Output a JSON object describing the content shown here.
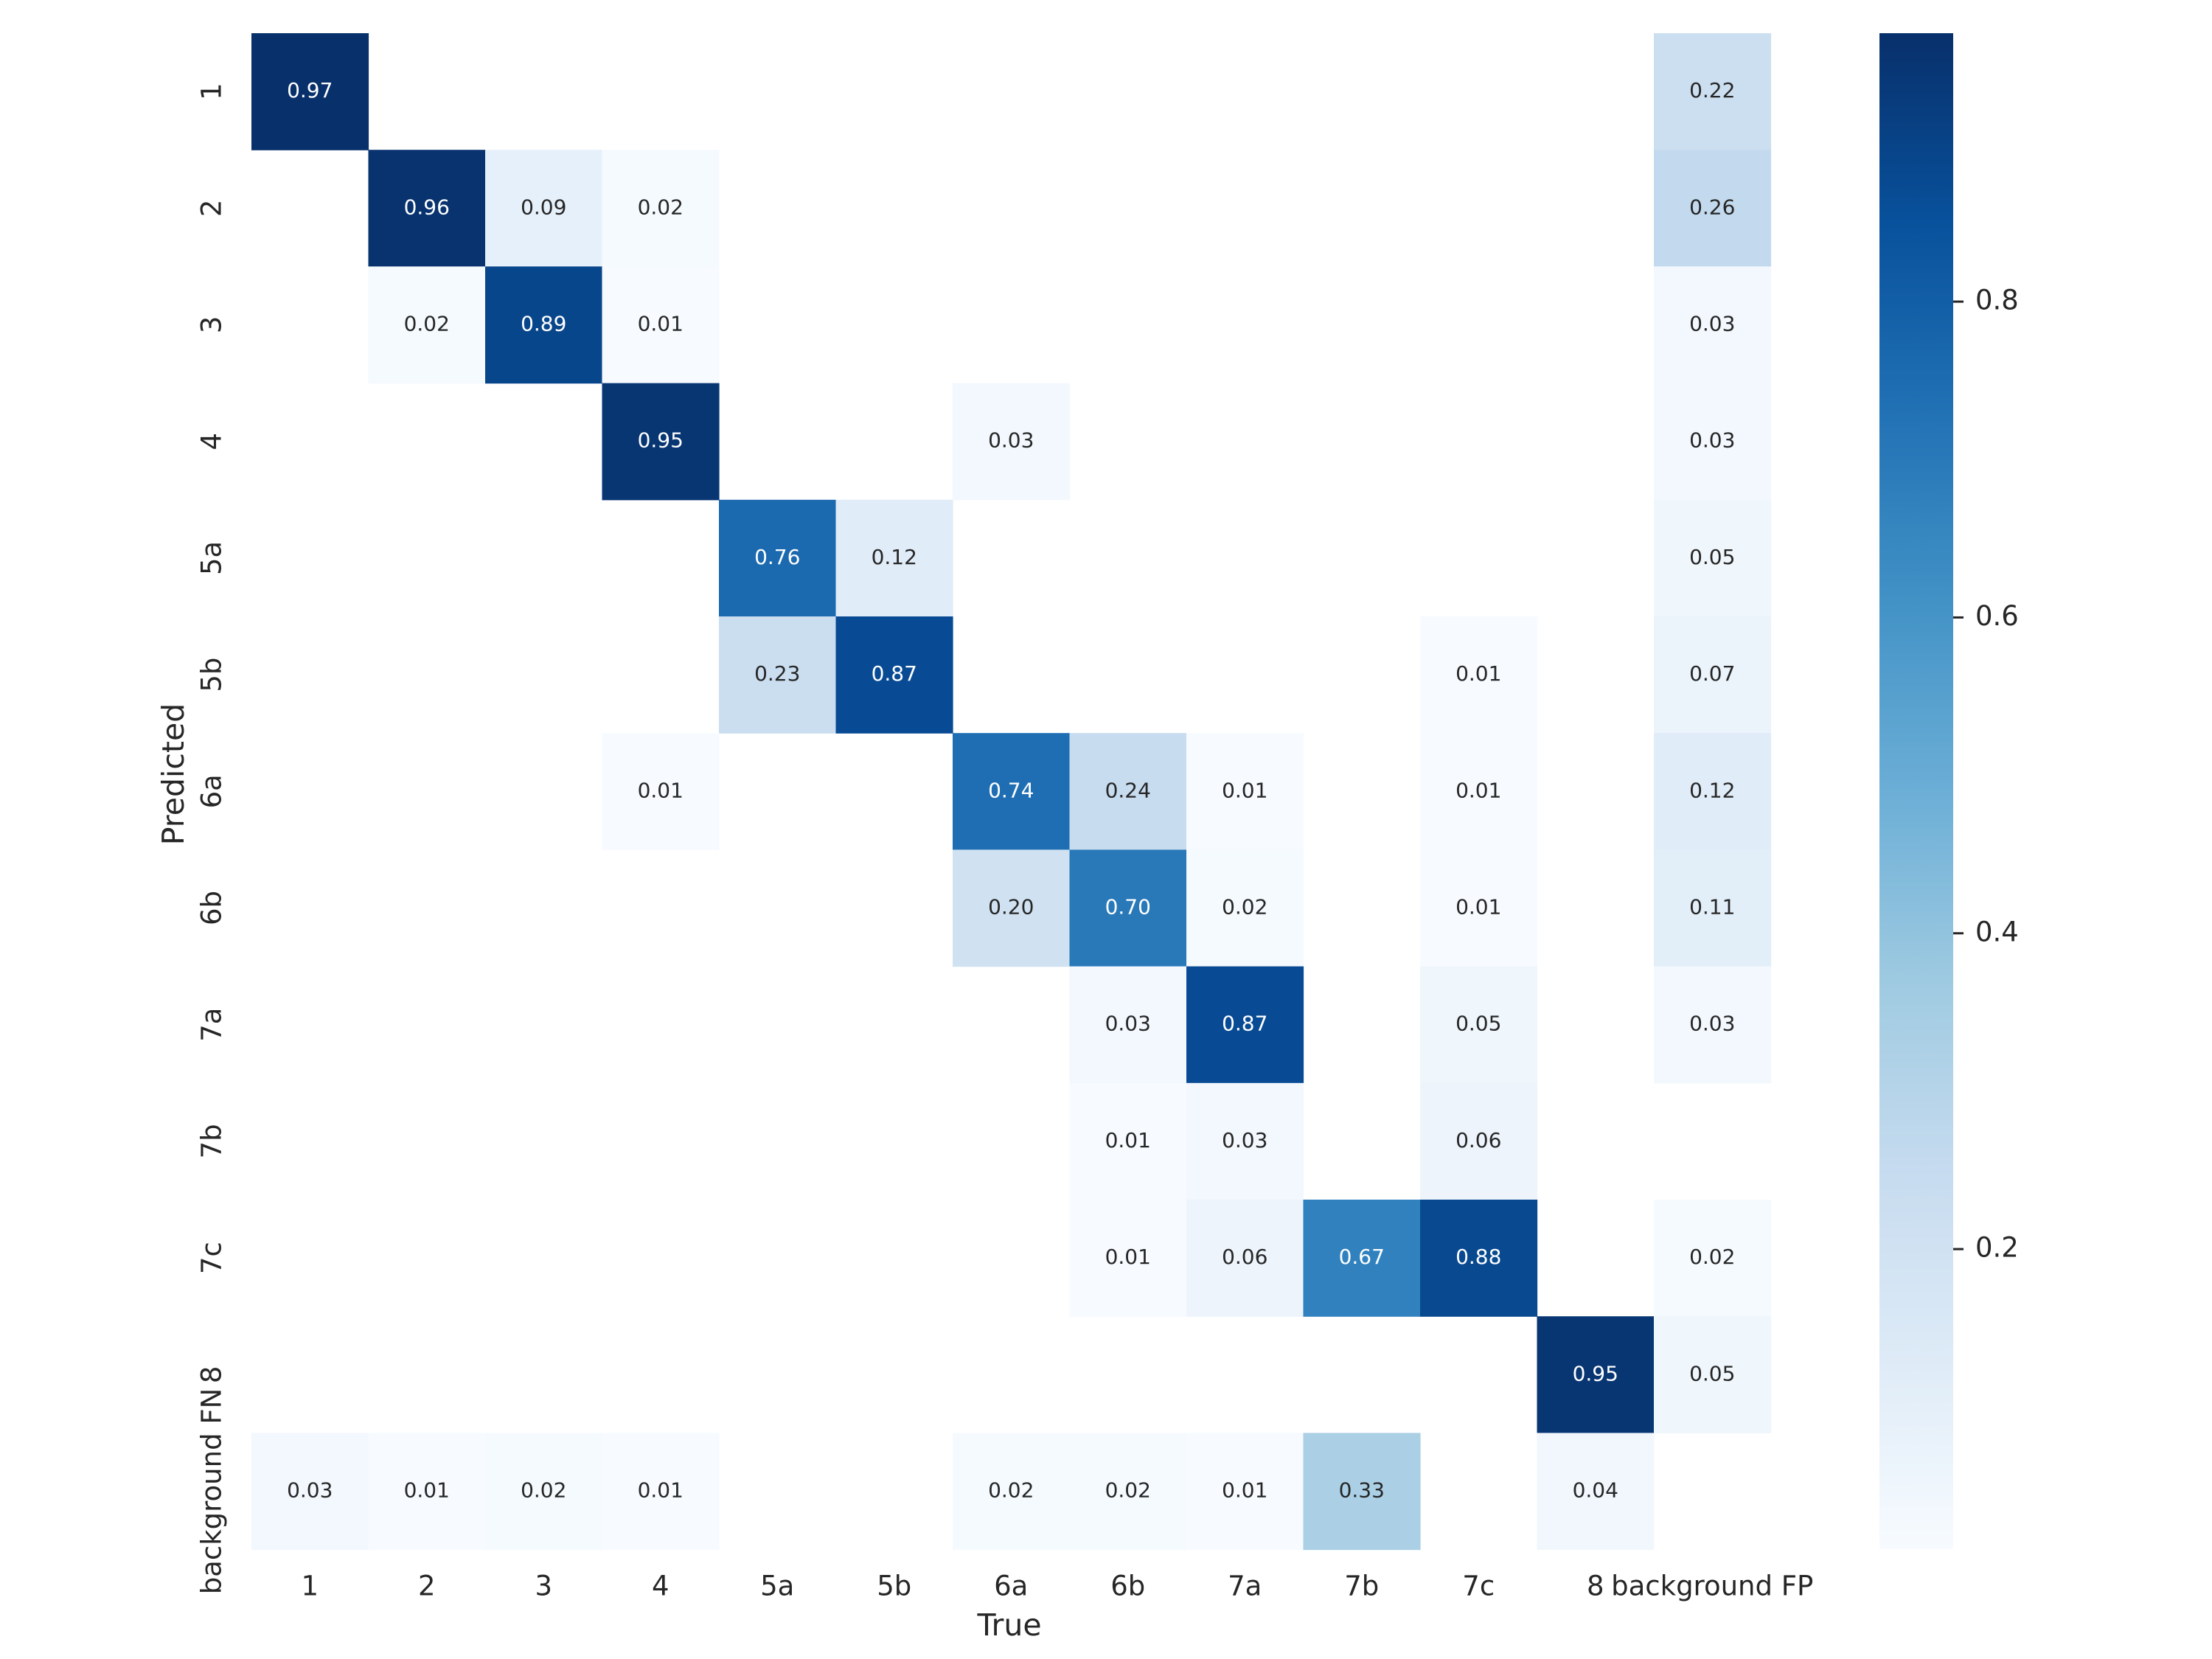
{
  "chart_data": {
    "type": "heatmap",
    "xlabel": "True",
    "ylabel": "Predicted",
    "x_categories": [
      "1",
      "2",
      "3",
      "4",
      "5a",
      "5b",
      "6a",
      "6b",
      "7a",
      "7b",
      "7c",
      "8",
      "background FP"
    ],
    "y_categories": [
      "1",
      "2",
      "3",
      "4",
      "5a",
      "5b",
      "6a",
      "6b",
      "7a",
      "7b",
      "7c",
      "8",
      "background FN"
    ],
    "values": [
      [
        0.97,
        null,
        null,
        null,
        null,
        null,
        null,
        null,
        null,
        null,
        null,
        null,
        0.22
      ],
      [
        null,
        0.96,
        0.09,
        0.02,
        null,
        null,
        null,
        null,
        null,
        null,
        null,
        null,
        0.26
      ],
      [
        null,
        0.02,
        0.89,
        0.01,
        null,
        null,
        null,
        null,
        null,
        null,
        null,
        null,
        0.03
      ],
      [
        null,
        null,
        null,
        0.95,
        null,
        null,
        0.03,
        null,
        null,
        null,
        null,
        null,
        0.03
      ],
      [
        null,
        null,
        null,
        null,
        0.76,
        0.12,
        null,
        null,
        null,
        null,
        null,
        null,
        0.05
      ],
      [
        null,
        null,
        null,
        null,
        0.23,
        0.87,
        null,
        null,
        null,
        null,
        0.01,
        null,
        0.07
      ],
      [
        null,
        null,
        null,
        0.01,
        null,
        null,
        0.74,
        0.24,
        0.01,
        null,
        0.01,
        null,
        0.12
      ],
      [
        null,
        null,
        null,
        null,
        null,
        null,
        0.2,
        0.7,
        0.02,
        null,
        0.01,
        null,
        0.11
      ],
      [
        null,
        null,
        null,
        null,
        null,
        null,
        null,
        0.03,
        0.87,
        null,
        0.05,
        null,
        0.03
      ],
      [
        null,
        null,
        null,
        null,
        null,
        null,
        null,
        0.01,
        0.03,
        null,
        0.06,
        null,
        null
      ],
      [
        null,
        null,
        null,
        null,
        null,
        null,
        null,
        0.01,
        0.06,
        0.67,
        0.88,
        null,
        0.02
      ],
      [
        null,
        null,
        null,
        null,
        null,
        null,
        null,
        null,
        null,
        null,
        null,
        0.95,
        0.05
      ],
      [
        0.03,
        0.01,
        0.02,
        0.01,
        null,
        null,
        0.02,
        0.02,
        0.01,
        0.33,
        null,
        0.04,
        null
      ]
    ],
    "colormap": "Blues",
    "vmin": 0.01,
    "vmax": 0.97,
    "colorbar_ticks": [
      0.2,
      0.4,
      0.6,
      0.8
    ],
    "colorbar_tick_labels": [
      "0.2",
      "0.4",
      "0.6",
      "0.8"
    ],
    "annotation_format": "0.00",
    "grid": false
  }
}
